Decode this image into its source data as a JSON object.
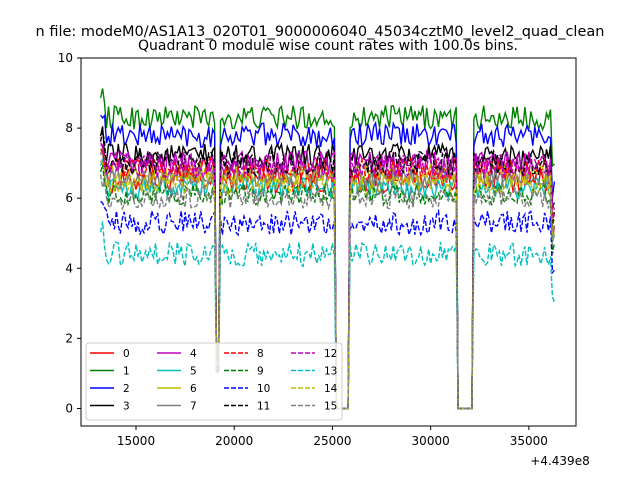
{
  "chart_data": {
    "type": "line",
    "suptitle": "n file: modeM0/AS1A13_020T01_9000006040_45034cztM0_level2_quad_clean",
    "title": "Quadrant 0 module wise count rates with 100.0s bins.",
    "xlabel": "",
    "ylabel": "",
    "x_offset_text": "+4.439e8",
    "xlim": [
      12200,
      37400
    ],
    "ylim": [
      -0.5,
      10
    ],
    "x_ticks": [
      15000,
      20000,
      25000,
      30000,
      35000
    ],
    "x_tick_labels": [
      "15000",
      "20000",
      "25000",
      "30000",
      "35000"
    ],
    "y_ticks": [
      0,
      2,
      4,
      6,
      8,
      10
    ],
    "y_tick_labels": [
      "0",
      "2",
      "4",
      "6",
      "8",
      "10"
    ],
    "grid": false,
    "legend_position": "lower-left",
    "legend_columns": 4,
    "x_range": [
      13200,
      36300
    ],
    "bin_width": 100,
    "gaps": [
      {
        "start": 19100,
        "end": 19200,
        "depth": "dip"
      },
      {
        "start": 25200,
        "end": 25800,
        "depth": "zero"
      },
      {
        "start": 31400,
        "end": 32100,
        "depth": "zero"
      }
    ],
    "series": [
      {
        "name": "0",
        "color": "#ff0000",
        "dash": "solid",
        "level": 6.5,
        "noise": 0.35
      },
      {
        "name": "1",
        "color": "#008000",
        "dash": "solid",
        "level": 8.3,
        "noise": 0.35
      },
      {
        "name": "2",
        "color": "#0000ff",
        "dash": "solid",
        "level": 7.8,
        "noise": 0.35
      },
      {
        "name": "3",
        "color": "#000000",
        "dash": "solid",
        "level": 7.2,
        "noise": 0.35
      },
      {
        "name": "4",
        "color": "#bf00bf",
        "dash": "solid",
        "level": 7.0,
        "noise": 0.35
      },
      {
        "name": "5",
        "color": "#00bfbf",
        "dash": "solid",
        "level": 6.3,
        "noise": 0.3
      },
      {
        "name": "6",
        "color": "#bfbf00",
        "dash": "solid",
        "level": 6.7,
        "noise": 0.3
      },
      {
        "name": "7",
        "color": "#808080",
        "dash": "solid",
        "level": 6.6,
        "noise": 0.3
      },
      {
        "name": "8",
        "color": "#ff0000",
        "dash": "dashed",
        "level": 6.8,
        "noise": 0.35
      },
      {
        "name": "9",
        "color": "#008000",
        "dash": "dashed",
        "level": 6.1,
        "noise": 0.3
      },
      {
        "name": "10",
        "color": "#0000ff",
        "dash": "dashed",
        "level": 5.3,
        "noise": 0.35
      },
      {
        "name": "11",
        "color": "#000000",
        "dash": "dashed",
        "level": 7.0,
        "noise": 0.35
      },
      {
        "name": "12",
        "color": "#bf00bf",
        "dash": "dashed",
        "level": 6.9,
        "noise": 0.35
      },
      {
        "name": "13",
        "color": "#00bfbf",
        "dash": "dashed",
        "level": 4.4,
        "noise": 0.35
      },
      {
        "name": "14",
        "color": "#bfbf00",
        "dash": "dashed",
        "level": 6.4,
        "noise": 0.3
      },
      {
        "name": "15",
        "color": "#808080",
        "dash": "dashed",
        "level": 6.0,
        "noise": 0.3
      }
    ]
  }
}
